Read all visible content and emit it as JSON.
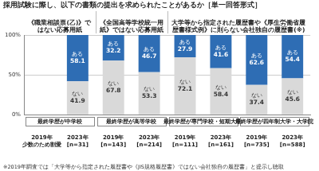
{
  "chart_data": {
    "type": "bar",
    "title": "採用試験に際し、以下の書類の提出を求められたことがあるか［単一回答形式］",
    "stacked": true,
    "categories": [
      "2019年 少数のため割愛",
      "2023年 [n=31]",
      "2019年 [n=143]",
      "2023年 [n=214]",
      "2019年 [n=111]",
      "2023年 [n=161]",
      "2019年 [n=735]",
      "2023年 [n=588]"
    ],
    "series": [
      {
        "name": "ない",
        "color": "#d9d9d9",
        "values": [
          null,
          41.9,
          67.8,
          53.3,
          72.1,
          58.4,
          37.4,
          45.6
        ]
      },
      {
        "name": "ある",
        "color": "#2e6db4",
        "values": [
          null,
          58.1,
          32.2,
          46.7,
          27.9,
          41.6,
          62.6,
          54.4
        ]
      }
    ],
    "ylim": [
      0,
      100
    ],
    "yticks": [
      {
        "value": 0,
        "label": "0%"
      },
      {
        "value": 50,
        "label": "50%"
      },
      {
        "value": 100,
        "label": "100%"
      }
    ],
    "grid": true,
    "data_labels": true,
    "panels": [
      {
        "title": "《職業相談票(乙)》ではない応募用紙",
        "groups": [
          "最終学歴が中学校"
        ]
      },
      {
        "title": "《全国高等学校統一用紙》ではない応募用紙",
        "groups": [
          "最終学歴が高等学校"
        ]
      },
      {
        "title": "大学等から指定された履歴書や《厚生労働省履歴書様式例》に則らない会社独自の履歴書(※)",
        "groups": [
          "最終学歴が専門学校・短期大学",
          "最終学歴が四年制大学・大学院"
        ]
      }
    ],
    "footnote": "※2019年調査では「大学等から指定された履歴書や《JIS規格履歴書》ではない会社独自の履歴書」と提示し聴取"
  }
}
